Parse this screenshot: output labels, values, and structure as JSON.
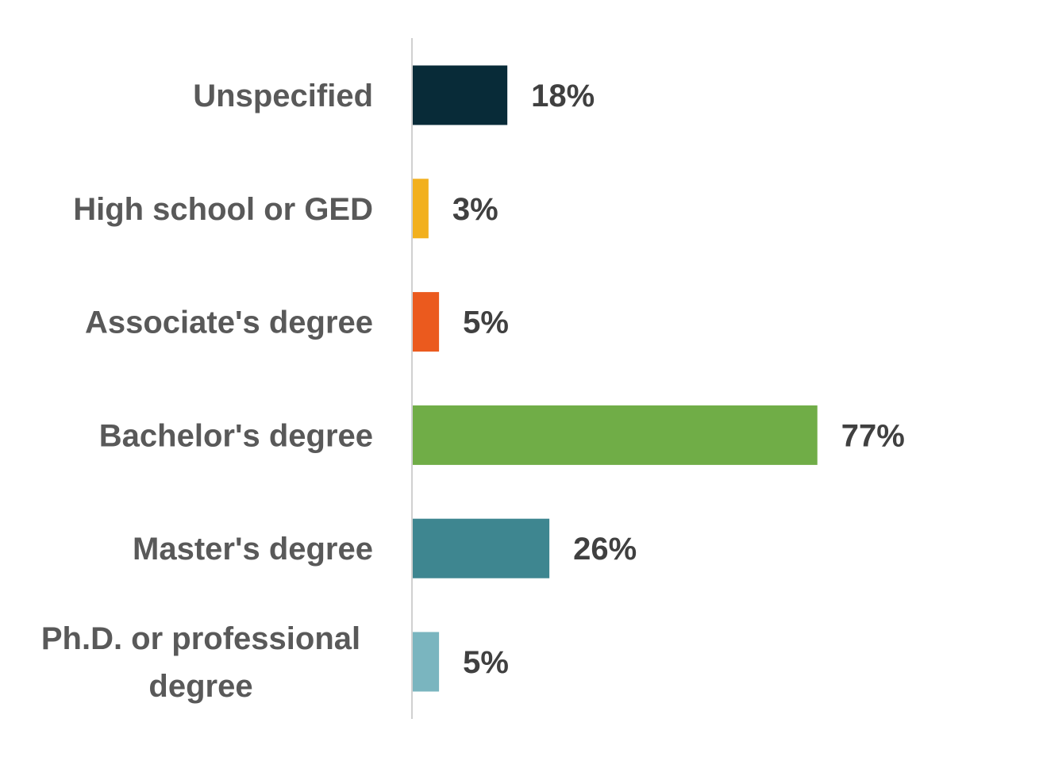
{
  "chart_data": {
    "type": "bar",
    "orientation": "horizontal",
    "title": "",
    "xlabel": "",
    "ylabel": "",
    "categories": [
      [
        "Unspecified"
      ],
      [
        "High school or GED"
      ],
      [
        "Associate's degree"
      ],
      [
        "Bachelor's degree"
      ],
      [
        "Master's degree"
      ],
      [
        "Ph.D. or professional",
        "degree"
      ]
    ],
    "values": [
      18,
      3,
      5,
      77,
      26,
      5
    ],
    "value_labels": [
      "18%",
      "3%",
      "5%",
      "77%",
      "26%",
      "5%"
    ],
    "colors": [
      "#082b38",
      "#f2b01e",
      "#eb5a1e",
      "#70ad47",
      "#3e8690",
      "#7ab5bf"
    ],
    "xlim": [
      0,
      100
    ],
    "grid": false,
    "legend": "none"
  }
}
